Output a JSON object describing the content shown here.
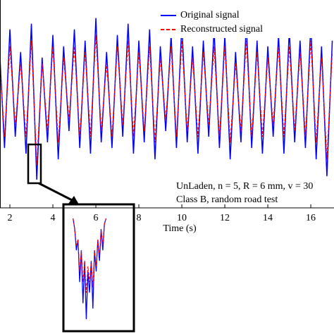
{
  "chart_data": [
    {
      "type": "line",
      "x": [
        1.5,
        1.75,
        2,
        2.25,
        2.5,
        2.75,
        3,
        3.25,
        3.5,
        3.75,
        4,
        4.25,
        4.5,
        4.75,
        5,
        5.25,
        5.5,
        5.75,
        6,
        6.25,
        6.5,
        6.75,
        7,
        7.25,
        7.5,
        7.75,
        8,
        8.25,
        8.5,
        8.75,
        9,
        9.25,
        9.5,
        9.75,
        10,
        10.25,
        10.5,
        10.75,
        11,
        11.25,
        11.5,
        11.75,
        12,
        12.25,
        12.5,
        12.75,
        13,
        13.25,
        13.5,
        13.75,
        14,
        14.25,
        14.5,
        14.75,
        15,
        15.25,
        15.5,
        15.75,
        16,
        16.25,
        16.5,
        16.75,
        17
      ],
      "series": [
        {
          "name": "Original signal",
          "color": "#0000ff",
          "values": [
            0.9,
            -1.0,
            1.1,
            -0.8,
            0.7,
            -1.1,
            1.2,
            -1.56,
            0.6,
            -0.9,
            1.0,
            -1.2,
            0.8,
            -0.7,
            1.1,
            -1.0,
            0.9,
            -1.1,
            1.3,
            -0.9,
            0.7,
            -1.0,
            1.0,
            -0.8,
            1.2,
            -1.1,
            0.9,
            -0.9,
            1.1,
            -1.2,
            0.8,
            -0.7,
            1.0,
            -1.0,
            1.2,
            -0.9,
            0.8,
            -1.1,
            0.9,
            -0.8,
            1.1,
            -1.0,
            1.0,
            -1.2,
            0.7,
            -0.9,
            1.2,
            -1.0,
            0.9,
            -1.1,
            0.8,
            -0.8,
            1.0,
            -1.1,
            1.1,
            -0.9,
            0.9,
            -1.0,
            1.2,
            -1.2,
            0.8,
            -1.5,
            0.9
          ]
        },
        {
          "name": "Reconstructed signal",
          "color": "#ff0000",
          "values": [
            0.7,
            -0.8,
            0.8,
            -0.6,
            0.5,
            -0.8,
            0.9,
            -1.3,
            0.5,
            -0.7,
            0.8,
            -0.9,
            0.6,
            -0.5,
            0.8,
            -0.8,
            0.7,
            -0.8,
            1.0,
            -0.7,
            0.5,
            -0.8,
            0.8,
            -0.6,
            0.9,
            -0.8,
            0.7,
            -0.7,
            0.8,
            -0.9,
            0.6,
            -0.5,
            0.8,
            -0.8,
            0.9,
            -0.7,
            0.6,
            -0.8,
            0.7,
            -0.6,
            0.8,
            -0.8,
            0.8,
            -0.9,
            0.5,
            -0.7,
            0.9,
            -0.8,
            0.7,
            -0.8,
            0.6,
            -0.6,
            0.8,
            -0.8,
            0.8,
            -0.7,
            0.7,
            -0.8,
            0.9,
            -0.9,
            0.6,
            -1.2,
            0.7
          ]
        }
      ],
      "xlim": [
        1.54,
        17.08
      ],
      "ylim": [
        -2.06,
        1.62
      ],
      "xticks": [
        2,
        4,
        6,
        8,
        10,
        12,
        14,
        16
      ],
      "x_label": "Time (s)",
      "annotations": [
        "UnLaden, n = 5, R = 6 mm, v = 30",
        "Class B, random road test"
      ]
    },
    {
      "type": "line",
      "x": [
        0,
        1,
        2,
        3,
        4,
        5,
        6,
        7,
        8,
        9,
        10,
        11,
        12,
        13,
        14,
        15,
        16,
        17,
        18,
        19,
        20
      ],
      "series": [
        {
          "color": "#0000ff",
          "values": [
            0,
            -0.1,
            -0.3,
            -0.2,
            -0.6,
            -0.3,
            -0.8,
            -0.4,
            -0.95,
            -0.5,
            -0.7,
            -0.4,
            -0.85,
            -0.3,
            -0.5,
            -0.2,
            -0.4,
            -0.1,
            -0.3,
            -0.05,
            0
          ]
        },
        {
          "color": "#ff0000",
          "values": [
            0,
            -0.1,
            -0.25,
            -0.2,
            -0.5,
            -0.3,
            -0.6,
            -0.4,
            -0.7,
            -0.45,
            -0.6,
            -0.4,
            -0.65,
            -0.3,
            -0.45,
            -0.2,
            -0.35,
            -0.1,
            -0.25,
            -0.05,
            0
          ]
        }
      ],
      "xlim": [
        -5,
        36
      ],
      "ylim": [
        -1.05,
        0.12
      ]
    }
  ]
}
